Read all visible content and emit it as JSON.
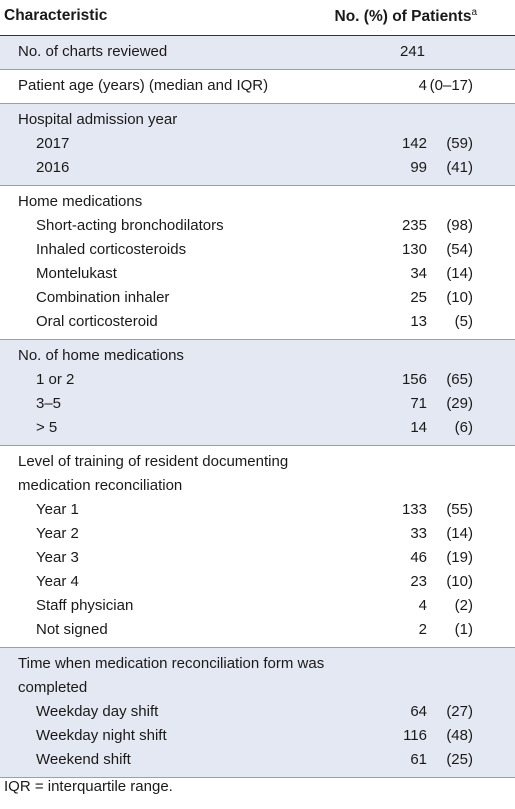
{
  "header": {
    "characteristic": "Characteristic",
    "patients": "No. (%) of Patients",
    "patients_sup": "a"
  },
  "rows": {
    "charts_label": "No. of charts reviewed",
    "charts_value": "241",
    "age_label": "Patient age (years) (median and IQR)",
    "age_num": "4",
    "age_range": "(0–17)"
  },
  "admission": {
    "title": "Hospital admission year",
    "items": [
      {
        "label": "2017",
        "num": "142",
        "pct": "(59)"
      },
      {
        "label": "2016",
        "num": "99",
        "pct": "(41)"
      }
    ]
  },
  "home_meds": {
    "title": "Home medications",
    "items": [
      {
        "label": "Short-acting bronchodilators",
        "num": "235",
        "pct": "(98)"
      },
      {
        "label": "Inhaled corticosteroids",
        "num": "130",
        "pct": "(54)"
      },
      {
        "label": "Montelukast",
        "num": "34",
        "pct": "(14)"
      },
      {
        "label": "Combination inhaler",
        "num": "25",
        "pct": "(10)"
      },
      {
        "label": "Oral corticosteroid",
        "num": "13",
        "pct": "(5)"
      }
    ]
  },
  "num_meds": {
    "title": "No. of home medications",
    "items": [
      {
        "label": "1 or 2",
        "num": "156",
        "pct": "(65)"
      },
      {
        "label": "3–5",
        "num": "71",
        "pct": "(29)"
      },
      {
        "label": "> 5",
        "num": "14",
        "pct": "(6)"
      }
    ]
  },
  "training": {
    "title": "Level of training of resident documenting medication reconciliation",
    "items": [
      {
        "label": "Year 1",
        "num": "133",
        "pct": "(55)"
      },
      {
        "label": "Year 2",
        "num": "33",
        "pct": "(14)"
      },
      {
        "label": "Year 3",
        "num": "46",
        "pct": "(19)"
      },
      {
        "label": "Year 4",
        "num": "23",
        "pct": "(10)"
      },
      {
        "label": "Staff physician",
        "num": "4",
        "pct": "(2)"
      },
      {
        "label": "Not signed",
        "num": "2",
        "pct": "(1)"
      }
    ]
  },
  "time": {
    "title": "Time when medication reconciliation form was completed",
    "items": [
      {
        "label": "Weekday day shift",
        "num": "64",
        "pct": "(27)"
      },
      {
        "label": "Weekday night shift",
        "num": "116",
        "pct": "(48)"
      },
      {
        "label": "Weekend shift",
        "num": "61",
        "pct": "(25)"
      }
    ]
  },
  "footnote": "IQR = interquartile range."
}
